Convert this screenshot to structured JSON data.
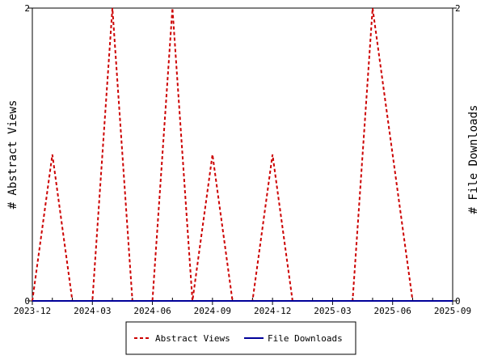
{
  "chart_data": {
    "type": "line",
    "x_ticks": [
      "2023-12",
      "2024-03",
      "2024-06",
      "2024-09",
      "2024-12",
      "2025-03",
      "2025-06",
      "2025-09"
    ],
    "x_range": [
      "2023-12",
      "2025-09"
    ],
    "ylabel_left": "# Abstract Views",
    "ylabel_right": "# File Downloads",
    "y_ticks_left": [
      "0",
      "2"
    ],
    "y_ticks_right": [
      "0",
      "2"
    ],
    "ylim": [
      0,
      2
    ],
    "x": [
      "2023-12",
      "2024-01",
      "2024-02",
      "2024-03",
      "2024-04",
      "2024-05",
      "2024-06",
      "2024-07",
      "2024-08",
      "2024-09",
      "2024-10",
      "2024-11",
      "2024-12",
      "2025-01",
      "2025-02",
      "2025-03",
      "2025-04",
      "2025-05",
      "2025-06",
      "2025-07",
      "2025-08",
      "2025-09"
    ],
    "series": [
      {
        "name": "Abstract Views",
        "axis": "left",
        "style": "dashed",
        "color": "#cc0000",
        "values": [
          0,
          1,
          0,
          0,
          2,
          0,
          0,
          2,
          0,
          1,
          0,
          0,
          1,
          0,
          0,
          0,
          0,
          2,
          1,
          0,
          0,
          0
        ]
      },
      {
        "name": "File Downloads",
        "axis": "right",
        "style": "solid",
        "color": "#000099",
        "values": [
          0,
          0,
          0,
          0,
          0,
          0,
          0,
          0,
          0,
          0,
          0,
          0,
          0,
          0,
          0,
          0,
          0,
          0,
          0,
          0,
          0,
          0
        ]
      }
    ],
    "grid": false,
    "legend_position": "bottom"
  }
}
